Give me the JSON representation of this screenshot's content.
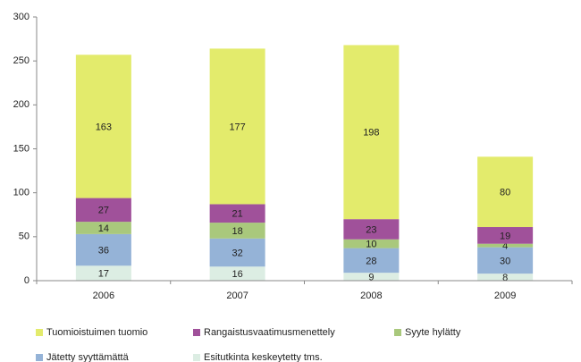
{
  "chart_data": {
    "type": "stacked_bar",
    "categories": [
      "2006",
      "2007",
      "2008",
      "2009"
    ],
    "series": [
      {
        "name": "Esitutkinta keskeytetty tms.",
        "color": "#dcede3",
        "values": [
          17,
          16,
          9,
          8
        ]
      },
      {
        "name": "Jätetty syyttämättä",
        "color": "#95b3d7",
        "values": [
          36,
          32,
          28,
          30
        ]
      },
      {
        "name": "Syyte hylätty",
        "color": "#a9c87c",
        "values": [
          14,
          18,
          10,
          4
        ]
      },
      {
        "name": "Rangaistusvaatimusmenettely",
        "color": "#a0519a",
        "values": [
          27,
          21,
          23,
          19
        ]
      },
      {
        "name": "Tuomioistuimen tuomio",
        "color": "#e3eb6c",
        "values": [
          163,
          177,
          198,
          80
        ]
      }
    ],
    "ylim": [
      0,
      300
    ],
    "yticks": [
      0,
      50,
      100,
      150,
      200,
      250,
      300
    ],
    "grid": false
  }
}
